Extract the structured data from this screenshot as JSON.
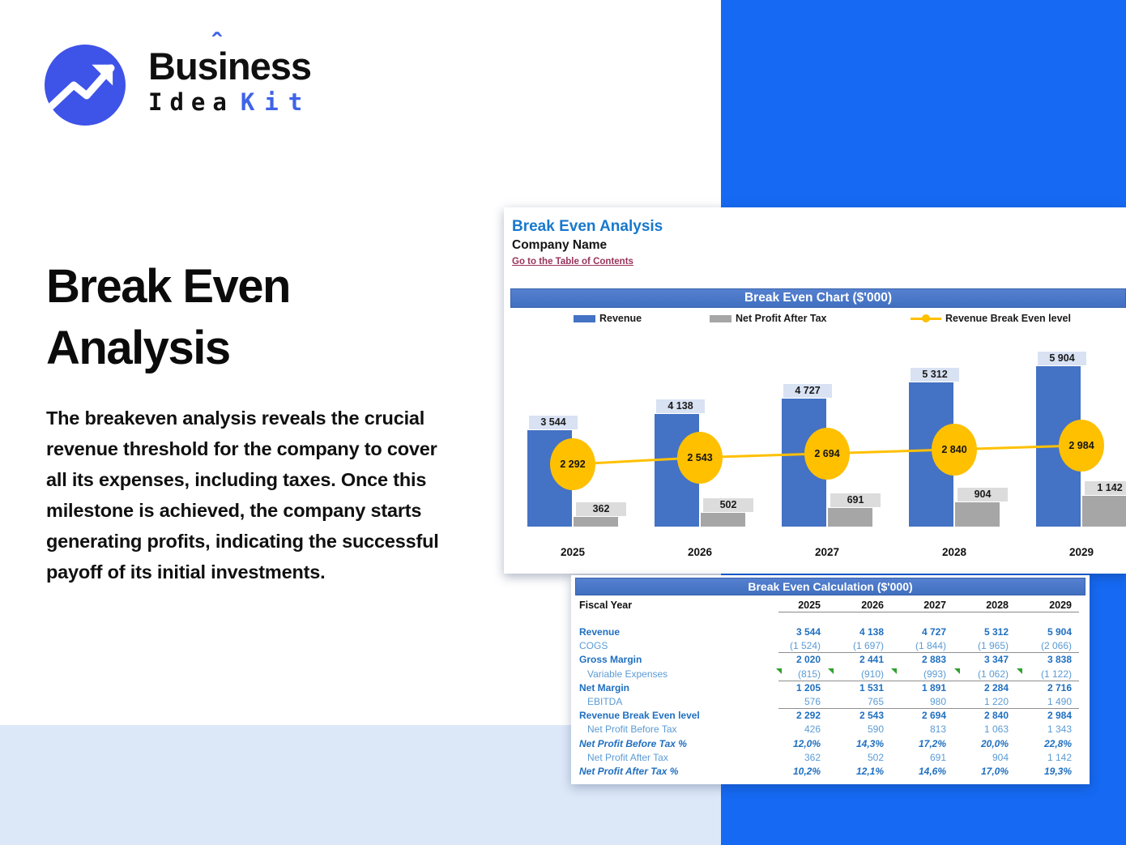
{
  "logo": {
    "part_a": "Bus",
    "part_i": "i",
    "part_b": "ness",
    "caret": "ˆ",
    "word2": "Idea",
    "word3": "Kit"
  },
  "hero": {
    "title_line1": "Break Even",
    "title_line2": "Analysis",
    "paragraph": "The breakeven analysis reveals the crucial revenue threshold for the company to cover all its expenses, including taxes. Once this milestone is achieved, the company starts generating profits, indicating the successful payoff of its initial investments."
  },
  "sheet": {
    "title": "Break Even Analysis",
    "subtitle": "Company Name",
    "link": "Go to the Table of Contents"
  },
  "chart_data": {
    "type": "bar",
    "title": "Break Even Chart ($'000)",
    "categories": [
      "2025",
      "2026",
      "2027",
      "2028",
      "2029"
    ],
    "series": [
      {
        "name": "Revenue",
        "type": "bar",
        "color": "#4472C4",
        "values": [
          3544,
          4138,
          4727,
          5312,
          5904
        ],
        "labels": [
          "3 544",
          "4 138",
          "4 727",
          "5 312",
          "5 904"
        ]
      },
      {
        "name": "Net Profit After Tax",
        "type": "bar",
        "color": "#A6A6A6",
        "values": [
          362,
          502,
          691,
          904,
          1142
        ],
        "labels": [
          "362",
          "502",
          "691",
          "904",
          "1 142"
        ]
      },
      {
        "name": "Revenue Break Even level",
        "type": "line",
        "color": "#FFC000",
        "values": [
          2292,
          2543,
          2694,
          2840,
          2984
        ],
        "labels": [
          "2 292",
          "2 543",
          "2 694",
          "2 840",
          "2 984"
        ]
      }
    ],
    "ylim": [
      0,
      6200
    ],
    "grid": false,
    "legend_position": "top"
  },
  "table": {
    "title": "Break Even Calculation ($'000)",
    "fiscal_year_label": "Fiscal Year",
    "years": [
      "2025",
      "2026",
      "2027",
      "2028",
      "2029"
    ],
    "rows": [
      {
        "label": "Revenue",
        "style": "bold",
        "indent": false,
        "separator": false,
        "comment_markers": false,
        "values": [
          "3 544",
          "4 138",
          "4 727",
          "5 312",
          "5 904"
        ]
      },
      {
        "label": "COGS",
        "style": "light",
        "indent": false,
        "separator": true,
        "comment_markers": false,
        "values": [
          "(1 524)",
          "(1 697)",
          "(1 844)",
          "(1 965)",
          "(2 066)"
        ]
      },
      {
        "label": "Gross Margin",
        "style": "bold",
        "indent": false,
        "separator": false,
        "comment_markers": false,
        "values": [
          "2 020",
          "2 441",
          "2 883",
          "3 347",
          "3 838"
        ]
      },
      {
        "label": "Variable Expenses",
        "style": "light",
        "indent": true,
        "separator": true,
        "comment_markers": true,
        "values": [
          "(815)",
          "(910)",
          "(993)",
          "(1 062)",
          "(1 122)"
        ]
      },
      {
        "label": "Net Margin",
        "style": "bold",
        "indent": false,
        "separator": false,
        "comment_markers": false,
        "values": [
          "1 205",
          "1 531",
          "1 891",
          "2 284",
          "2 716"
        ]
      },
      {
        "label": "EBITDA",
        "style": "light",
        "indent": true,
        "separator": true,
        "comment_markers": false,
        "values": [
          "576",
          "765",
          "980",
          "1 220",
          "1 490"
        ]
      },
      {
        "label": "Revenue Break Even level",
        "style": "bold",
        "indent": false,
        "separator": false,
        "comment_markers": false,
        "values": [
          "2 292",
          "2 543",
          "2 694",
          "2 840",
          "2 984"
        ]
      },
      {
        "label": "Net Profit Before Tax",
        "style": "light",
        "indent": true,
        "separator": false,
        "comment_markers": false,
        "values": [
          "426",
          "590",
          "813",
          "1 063",
          "1 343"
        ]
      },
      {
        "label": "Net Profit Before Tax %",
        "style": "bold-italic",
        "indent": false,
        "separator": false,
        "comment_markers": false,
        "values": [
          "12,0%",
          "14,3%",
          "17,2%",
          "20,0%",
          "22,8%"
        ]
      },
      {
        "label": "Net Profit After Tax",
        "style": "light",
        "indent": true,
        "separator": false,
        "comment_markers": false,
        "values": [
          "362",
          "502",
          "691",
          "904",
          "1 142"
        ]
      },
      {
        "label": "Net Profit After Tax %",
        "style": "bold-italic",
        "indent": false,
        "separator": false,
        "comment_markers": false,
        "values": [
          "10,2%",
          "12,1%",
          "14,6%",
          "17,0%",
          "19,3%"
        ]
      }
    ]
  },
  "colors": {
    "brand_blue": "#3E63E8",
    "bg_accent_blue": "#1569F2",
    "bg_light_blue": "#DCE8F8",
    "banner_blue": "#4472C4",
    "revenue_bar": "#4472C4",
    "net_profit_bar": "#A6A6A6",
    "break_even_line": "#FFC000",
    "sheet_title_blue": "#1878CC",
    "link_maroon": "#99335B",
    "table_bold_blue": "#1F6FC0",
    "table_light_blue": "#5B9BD5",
    "comment_green": "#2FA12F"
  }
}
